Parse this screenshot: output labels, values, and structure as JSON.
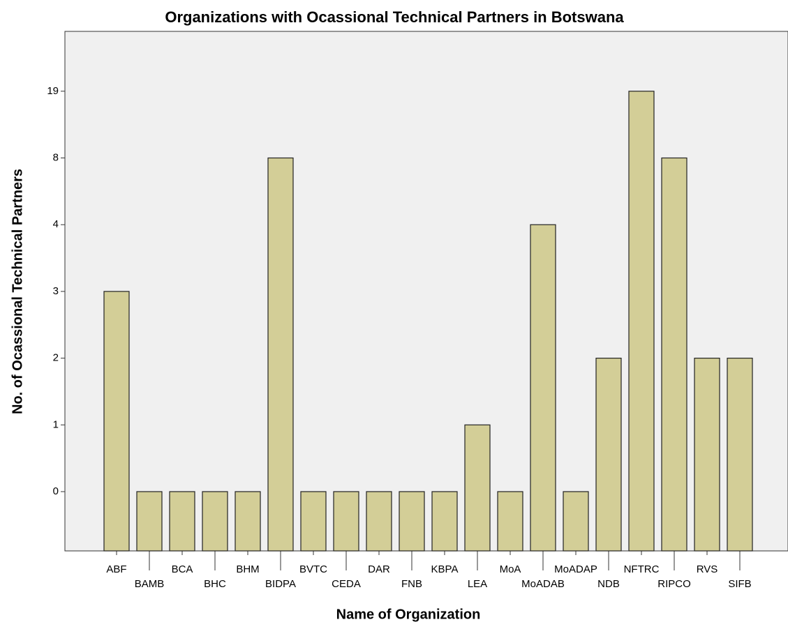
{
  "chart_data": {
    "type": "bar",
    "title": "Organizations with Ocassional Technical Partners in Botswana",
    "x_label": "Name of Organization",
    "y_label": "No. of Ocassional Technical Partners",
    "categories": [
      "ABF",
      "BAMB",
      "BCA",
      "BHC",
      "BHM",
      "BIDPA",
      "BVTC",
      "CEDA",
      "DAR",
      "FNB",
      "KBPA",
      "LEA",
      "MoA",
      "MoADAB",
      "MoADAP",
      "NDB",
      "NFTRC",
      "RIPCO",
      "RVS",
      "SIFB"
    ],
    "values": [
      3,
      0,
      0,
      0,
      0,
      8,
      0,
      0,
      0,
      0,
      0,
      1,
      0,
      4,
      0,
      2,
      19,
      8,
      2,
      2
    ],
    "color": "#d3ce97",
    "y_scale": "ordinal",
    "yticks": [
      0,
      1,
      2,
      3,
      4,
      8,
      19
    ],
    "grid": false
  }
}
